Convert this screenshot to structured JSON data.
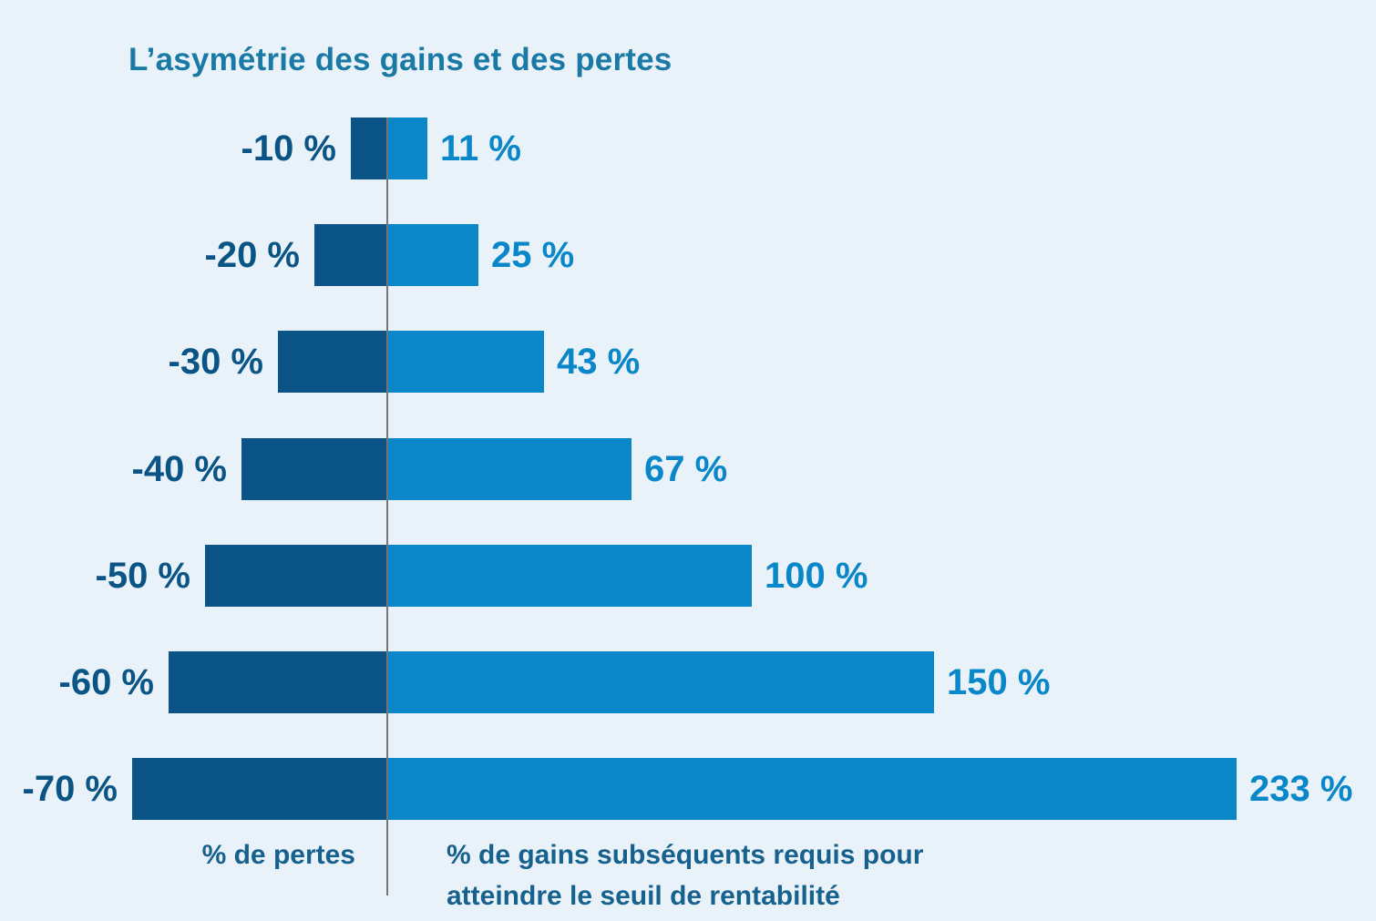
{
  "chart_data": {
    "type": "bar",
    "variant": "diverging-horizontal",
    "title": "L’asymétrie des gains et des pertes",
    "categories": [
      "-10 %",
      "-20 %",
      "-30 %",
      "-40 %",
      "-50 %",
      "-60 %",
      "-70 %"
    ],
    "series": [
      {
        "name": "% de pertes",
        "values": [
          -10,
          -20,
          -30,
          -40,
          -50,
          -60,
          -70
        ],
        "labels": [
          "-10 %",
          "-20 %",
          "-30 %",
          "-40 %",
          "-50 %",
          "-60 %",
          "-70 %"
        ],
        "color": "#0a5585"
      },
      {
        "name": "% de gains subséquents requis pour atteindre le seuil de rentabilité",
        "values": [
          11,
          25,
          43,
          67,
          100,
          150,
          233
        ],
        "labels": [
          "11 %",
          "25 %",
          "43 %",
          "67 %",
          "100 %",
          "150 %",
          "233 %"
        ],
        "color": "#0a87c9"
      }
    ],
    "captions": {
      "left": "% de pertes",
      "right": "% de gains subséquents requis pour\natteindre le seuil de rentabilité"
    },
    "axis": {
      "baseline_value": 0,
      "xlim": [
        -70,
        233
      ],
      "gridlines": false,
      "legend": "none"
    },
    "colors": {
      "background": "#eaf2f9",
      "title": "#1a7aa5",
      "caption": "#17618f",
      "axis_line": "#74767a",
      "loss_bar": "#0a5585",
      "gain_bar": "#0a87c9"
    }
  }
}
